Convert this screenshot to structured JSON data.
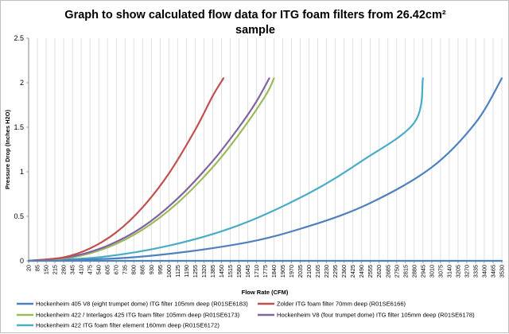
{
  "chart_data": {
    "type": "line",
    "title_line1": "Graph to show calculated flow data for ITG foam filters from 26.42cm²",
    "title_line2": "sample",
    "xlabel": "Flow Rate (CFM)",
    "ylabel": "Pressure Drop (Inches H2O)",
    "ylim": [
      0,
      2.5
    ],
    "y_ticks": [
      "0",
      "0.5",
      "1",
      "1.5",
      "2",
      "2.5"
    ],
    "x_tick_labels": [
      "20",
      "85",
      "150",
      "215",
      "280",
      "345",
      "410",
      "475",
      "540",
      "605",
      "670",
      "735",
      "800",
      "865",
      "930",
      "995",
      "1060",
      "1125",
      "1190",
      "1255",
      "1320",
      "1385",
      "1450",
      "1515",
      "1580",
      "1645",
      "1710",
      "1775",
      "1840",
      "1905",
      "1970",
      "2035",
      "2100",
      "2165",
      "2230",
      "2295",
      "2360",
      "2425",
      "2490",
      "2555",
      "2620",
      "2685",
      "2750",
      "2815",
      "2880",
      "2945",
      "3010",
      "3075",
      "3140",
      "3205",
      "3270",
      "3335",
      "3400",
      "3465",
      "3530"
    ],
    "grid": "vertical",
    "legend_position": "bottom",
    "series": [
      {
        "name": "Hockenheim 405 V8 (eight trumpet dome) ITG filter 105mm deep (R01SE6183)",
        "color": "#4f81bd",
        "x": [
          20,
          3530
        ],
        "y": [
          0,
          0
        ]
      },
      {
        "name": "Zolder ITG foam filter 70mm deep (R01SE6166)",
        "color": "#c0504d",
        "x": [
          20,
          280,
          475,
          670,
          865,
          1060,
          1255,
          1385,
          1465
        ],
        "y": [
          0,
          0.04,
          0.14,
          0.32,
          0.6,
          0.98,
          1.47,
          1.85,
          2.05
        ]
      },
      {
        "name": "Hockenheim 422 / Interlagos 425 ITG foam filter 105mm deep (R01SE6173)",
        "color": "#9bbb59",
        "x": [
          20,
          345,
          605,
          865,
          1125,
          1385,
          1580,
          1775,
          1840
        ],
        "y": [
          0,
          0.04,
          0.15,
          0.35,
          0.65,
          1.05,
          1.42,
          1.85,
          2.05
        ]
      },
      {
        "name": "Hockenheim V8 (four trumpet dome) ITG filter 105mm deep (R01SE6178)",
        "color": "#8064a2",
        "x": [
          20,
          345,
          605,
          865,
          1125,
          1385,
          1580,
          1710,
          1805
        ],
        "y": [
          0,
          0.05,
          0.17,
          0.38,
          0.7,
          1.12,
          1.5,
          1.79,
          2.05
        ]
      },
      {
        "name": "Hockenheim 422 ITG foam filter element 160mm deep (R01SE6172)",
        "color": "#4bacc6",
        "x": [
          20,
          540,
          1060,
          1580,
          2100,
          2490,
          2880,
          2945
        ],
        "y": [
          0,
          0.04,
          0.17,
          0.4,
          0.76,
          1.12,
          1.55,
          2.05
        ]
      },
      {
        "name": "",
        "color": "#4f81bd",
        "x": [
          20,
          800,
          1580,
          2100,
          2555,
          3010,
          3335,
          3530
        ],
        "y": [
          0,
          0.04,
          0.19,
          0.39,
          0.65,
          1.05,
          1.55,
          2.05
        ]
      }
    ]
  }
}
